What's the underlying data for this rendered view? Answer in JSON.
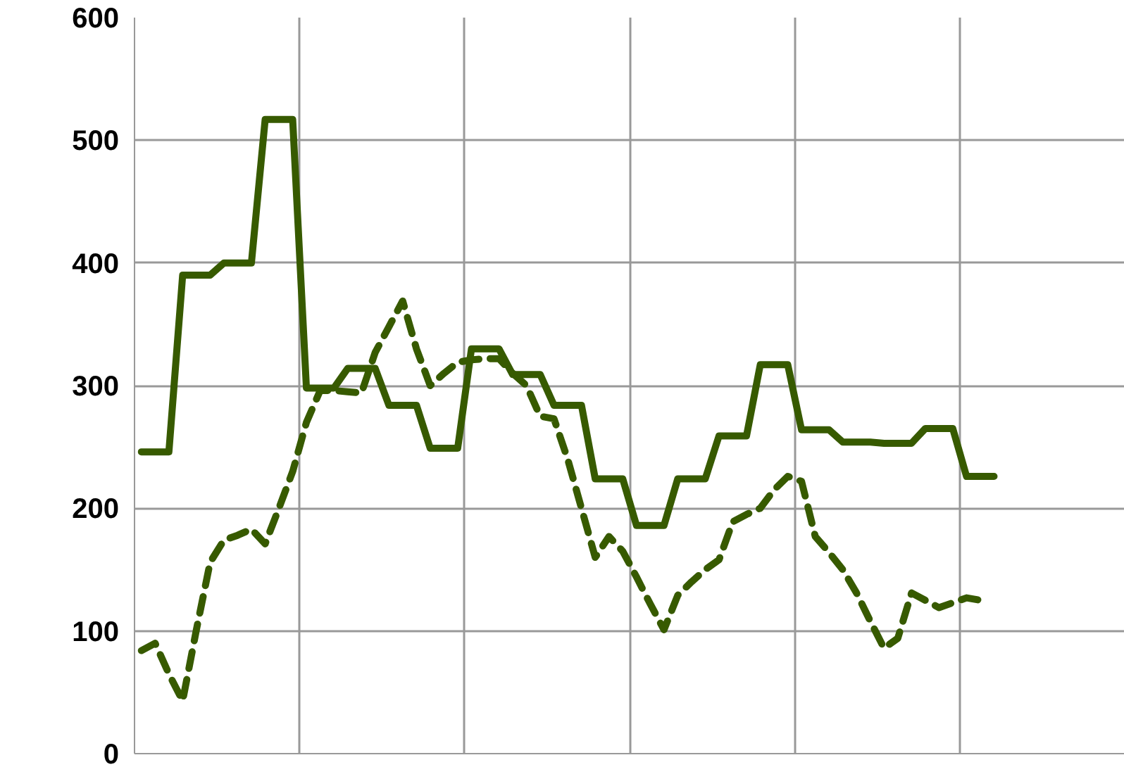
{
  "chart_data": {
    "type": "line",
    "ylim": [
      0,
      600
    ],
    "categories": [
      null,
      null,
      null,
      null,
      null,
      null,
      null,
      null,
      null,
      null,
      null,
      null,
      null,
      null,
      null,
      null,
      null,
      null,
      null,
      null,
      null,
      null,
      null,
      null,
      null,
      null,
      null,
      null,
      null,
      null,
      null,
      null,
      null,
      null,
      null,
      null,
      null,
      null,
      null,
      null,
      null,
      null,
      null,
      null,
      null,
      null,
      null,
      null,
      null,
      null,
      null,
      null,
      null,
      null,
      null,
      null,
      null,
      null,
      null,
      null,
      null,
      null,
      null,
      null,
      null,
      null,
      null,
      null,
      null,
      null,
      null,
      null
    ],
    "yticks": [
      0,
      100,
      200,
      300,
      400,
      500,
      600
    ],
    "grid": true,
    "tick_labels": "y",
    "series": [
      {
        "color": "#375a00",
        "line_style": "solid",
        "values": [
          246,
          246,
          246,
          390,
          390,
          390,
          400,
          400,
          400,
          517,
          517,
          517,
          298,
          298,
          298,
          314,
          314,
          314,
          284,
          284,
          284,
          249,
          249,
          249,
          330,
          330,
          330,
          309,
          309,
          309,
          284,
          284,
          284,
          224,
          224,
          224,
          186,
          186,
          186,
          224,
          224,
          224,
          259,
          259,
          259,
          317,
          317,
          317,
          264,
          264,
          264,
          254,
          254,
          254,
          253,
          253,
          253,
          265,
          265,
          265,
          226,
          226,
          226,
          null,
          null,
          null,
          null,
          null,
          null,
          null,
          null,
          null
        ]
      },
      {
        "color": "#375a00",
        "line_style": "dashed",
        "values": [
          84,
          90,
          65,
          43,
          101,
          156,
          174,
          178,
          183,
          171,
          200,
          230,
          270,
          296,
          296,
          295,
          294,
          327,
          348,
          369,
          330,
          300,
          310,
          319,
          321,
          322,
          322,
          310,
          300,
          275,
          273,
          240,
          200,
          160,
          177,
          165,
          144,
          122,
          101,
          129,
          140,
          150,
          158,
          189,
          195,
          200,
          215,
          226,
          222,
          177,
          164,
          150,
          131,
          108,
          86,
          94,
          131,
          125,
          119,
          123,
          127,
          125,
          null,
          null,
          null,
          null,
          null,
          null,
          null,
          null,
          null,
          null
        ]
      }
    ]
  }
}
